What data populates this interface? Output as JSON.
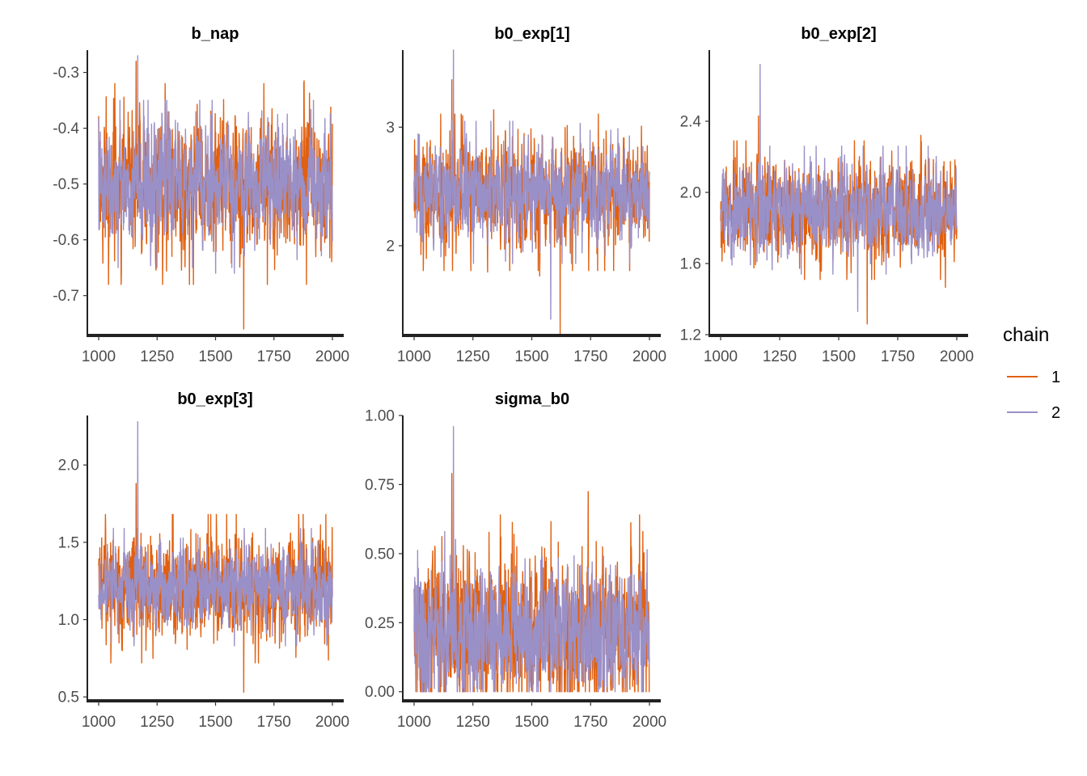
{
  "chart_data": {
    "type": "line",
    "x_range": [
      1000,
      2000
    ],
    "x_ticks": [
      1000,
      1250,
      1500,
      1750,
      2000
    ],
    "legend": {
      "title": "chain",
      "position": "right",
      "entries": [
        {
          "label": "1",
          "color": "#e06010"
        },
        {
          "label": "2",
          "color": "#9a90c8"
        }
      ]
    },
    "panels": [
      {
        "title": "b_nap",
        "ylim": [
          -0.77,
          -0.26
        ],
        "y_ticks": [
          -0.3,
          -0.4,
          -0.5,
          -0.6,
          -0.7
        ],
        "y_tick_labels": [
          "-0.3",
          "-0.4",
          "-0.5",
          "-0.6",
          "-0.7"
        ],
        "series": [
          {
            "name": "1",
            "mean": -0.5,
            "sd": 0.06,
            "min": -0.76,
            "max": -0.28
          },
          {
            "name": "2",
            "mean": -0.5,
            "sd": 0.05,
            "min": -0.66,
            "max": -0.27
          }
        ]
      },
      {
        "title": "b0_exp[1]",
        "ylim": [
          1.25,
          3.65
        ],
        "y_ticks": [
          3,
          2
        ],
        "y_tick_labels": [
          "3",
          "2"
        ],
        "series": [
          {
            "name": "1",
            "mean": 2.45,
            "sd": 0.22,
            "min": 1.25,
            "max": 3.4
          },
          {
            "name": "2",
            "mean": 2.45,
            "sd": 0.2,
            "min": 1.38,
            "max": 3.65
          }
        ]
      },
      {
        "title": "b0_exp[2]",
        "ylim": [
          1.2,
          2.8
        ],
        "y_ticks": [
          2.4,
          2.0,
          1.6,
          1.2
        ],
        "y_tick_labels": [
          "2.4",
          "2.0",
          "1.6",
          "1.2"
        ],
        "series": [
          {
            "name": "1",
            "mean": 1.9,
            "sd": 0.13,
            "min": 1.26,
            "max": 2.43
          },
          {
            "name": "2",
            "mean": 1.9,
            "sd": 0.12,
            "min": 1.33,
            "max": 2.72
          }
        ]
      },
      {
        "title": "b0_exp[3]",
        "ylim": [
          0.48,
          2.32
        ],
        "y_ticks": [
          2.0,
          1.5,
          1.0,
          0.5
        ],
        "y_tick_labels": [
          "2.0",
          "1.5",
          "1.0",
          "0.5"
        ],
        "series": [
          {
            "name": "1",
            "mean": 1.2,
            "sd": 0.16,
            "min": 0.53,
            "max": 1.88
          },
          {
            "name": "2",
            "mean": 1.2,
            "sd": 0.13,
            "min": 0.83,
            "max": 2.28
          }
        ]
      },
      {
        "title": "sigma_b0",
        "ylim": [
          -0.03,
          1.0
        ],
        "y_ticks": [
          1.0,
          0.75,
          0.5,
          0.25,
          0.0
        ],
        "y_tick_labels": [
          "1.00",
          "0.75",
          "0.50",
          "0.25",
          "0.00"
        ],
        "series": [
          {
            "name": "1",
            "mean": 0.22,
            "sd": 0.14,
            "min": 0.0,
            "max": 0.79
          },
          {
            "name": "2",
            "mean": 0.22,
            "sd": 0.12,
            "min": 0.0,
            "max": 0.96
          }
        ]
      }
    ]
  }
}
